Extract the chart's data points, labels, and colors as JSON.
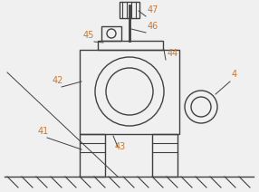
{
  "bg_color": "#f0f0f0",
  "line_color": "#404040",
  "label_color": "#c87832",
  "fig_width": 2.86,
  "fig_height": 2.12,
  "dpi": 100,
  "lw": 1.0
}
